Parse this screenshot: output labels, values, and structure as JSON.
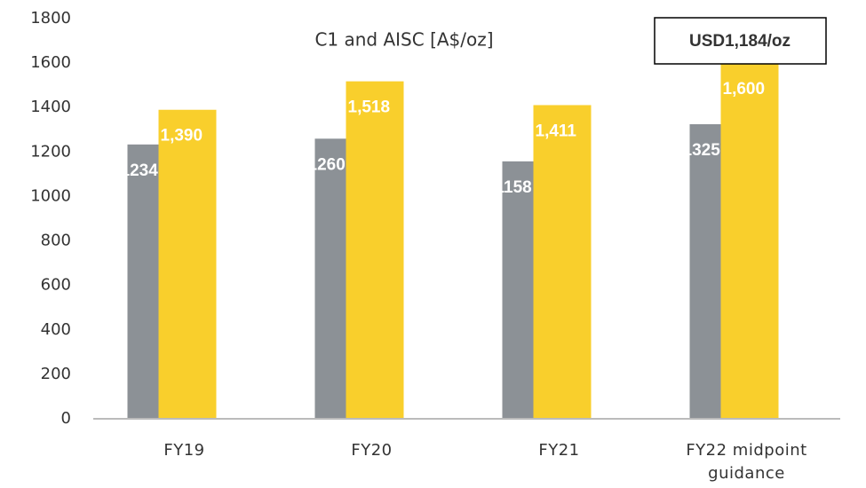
{
  "chart_data": {
    "type": "bar",
    "title": "C1 and AISC [A$/oz]",
    "categories": [
      "FY19",
      "FY20",
      "FY21",
      "FY22 midpoint guidance"
    ],
    "series": [
      {
        "color": "#8c9196",
        "values": [
          1234,
          1260,
          1158,
          1325
        ]
      },
      {
        "color": "#f9cf2c",
        "values": [
          1390,
          1518,
          1411,
          1600
        ],
        "value_labels": [
          "1,390",
          "1,518",
          "1,411",
          "1,600"
        ]
      }
    ],
    "annotation": "USD1,184/oz",
    "ylim": [
      0,
      1800
    ],
    "yticks": [
      0,
      200,
      400,
      600,
      800,
      1000,
      1200,
      1400,
      1600,
      1800
    ],
    "grid": false
  }
}
